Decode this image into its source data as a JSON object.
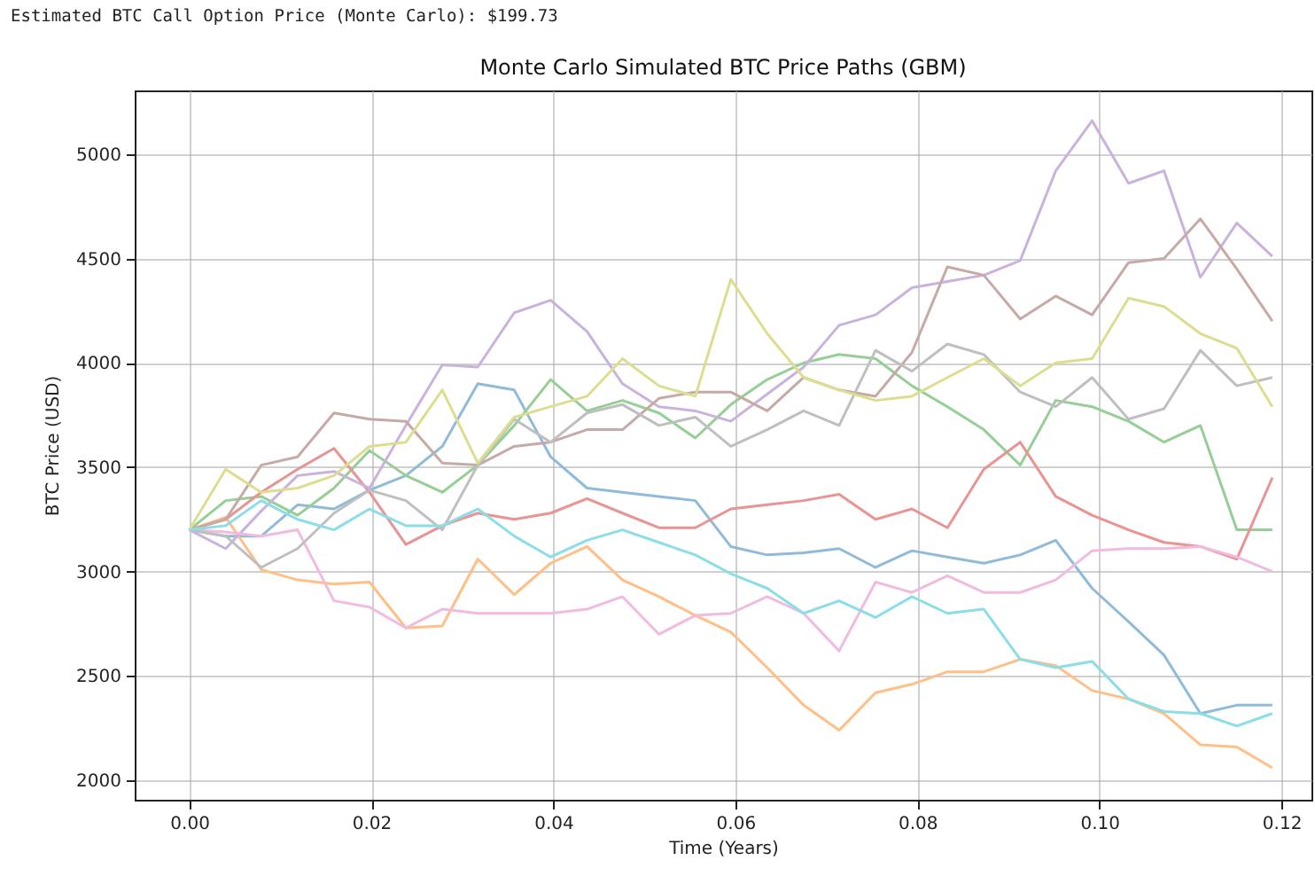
{
  "chart_data": {
    "type": "line",
    "title": "Monte Carlo Simulated BTC Price Paths (GBM)",
    "xlabel": "Time (Years)",
    "ylabel": "BTC Price (USD)",
    "annotations": [
      "Estimated BTC Call Option Price (Monte Carlo): $199.73"
    ],
    "x": [
      0,
      0.004,
      0.0079,
      0.0119,
      0.0159,
      0.0198,
      0.0238,
      0.0278,
      0.0317,
      0.0357,
      0.0397,
      0.0437,
      0.0476,
      0.0516,
      0.0556,
      0.0595,
      0.0635,
      0.0675,
      0.0714,
      0.0754,
      0.0794,
      0.0833,
      0.0873,
      0.0913,
      0.0952,
      0.0992,
      0.1032,
      0.1071,
      0.1111,
      0.1151,
      0.119
    ],
    "xlim": [
      -0.006,
      0.1233
    ],
    "xticks": [
      {
        "value": 0,
        "label": "0.00"
      },
      {
        "value": 0.02,
        "label": "0.02"
      },
      {
        "value": 0.04,
        "label": "0.04"
      },
      {
        "value": 0.06,
        "label": "0.06"
      },
      {
        "value": 0.08,
        "label": "0.08"
      },
      {
        "value": 0.1,
        "label": "0.10"
      },
      {
        "value": 0.12,
        "label": "0.12"
      }
    ],
    "ylim": [
      1907,
      5305
    ],
    "yticks": [
      2000,
      2500,
      3000,
      3500,
      4000,
      4500,
      5000
    ],
    "grid": true,
    "series": [
      {
        "color": "#8fbbd9",
        "values": [
          3200,
          3170,
          3170,
          3320,
          3300,
          3390,
          3460,
          3600,
          3900,
          3870,
          3550,
          3400,
          3380,
          3360,
          3340,
          3120,
          3080,
          3090,
          3110,
          3020,
          3100,
          3070,
          3040,
          3080,
          3150,
          2920,
          2760,
          2600,
          2320,
          2360,
          2360
        ]
      },
      {
        "color": "#ffbf86",
        "values": [
          3200,
          3260,
          3010,
          2960,
          2940,
          2950,
          2730,
          2740,
          3060,
          2890,
          3040,
          3120,
          2960,
          2880,
          2790,
          2710,
          2540,
          2360,
          2240,
          2420,
          2460,
          2520,
          2520,
          2580,
          2550,
          2430,
          2390,
          2320,
          2170,
          2160,
          2060
        ]
      },
      {
        "color": "#95cf95",
        "values": [
          3200,
          3340,
          3360,
          3270,
          3400,
          3580,
          3460,
          3380,
          3510,
          3700,
          3920,
          3770,
          3820,
          3760,
          3640,
          3800,
          3920,
          4000,
          4040,
          4020,
          3890,
          3790,
          3680,
          3510,
          3820,
          3790,
          3720,
          3620,
          3700,
          3200,
          3200
        ]
      },
      {
        "color": "#ea9393",
        "values": [
          3200,
          3250,
          3380,
          3490,
          3590,
          3380,
          3130,
          3220,
          3280,
          3250,
          3280,
          3350,
          3280,
          3210,
          3210,
          3300,
          3320,
          3340,
          3370,
          3250,
          3300,
          3210,
          3490,
          3620,
          3360,
          3270,
          3200,
          3140,
          3120,
          3060,
          3450
        ]
      },
      {
        "color": "#c9b3de",
        "values": [
          3200,
          3110,
          3290,
          3460,
          3480,
          3400,
          3700,
          3990,
          3980,
          4240,
          4300,
          4150,
          3900,
          3790,
          3770,
          3720,
          3850,
          3980,
          4180,
          4230,
          4360,
          4390,
          4420,
          4490,
          4920,
          5160,
          4860,
          4920,
          4410,
          4670,
          4510
        ]
      },
      {
        "color": "#c5aaa5",
        "values": [
          3200,
          3250,
          3510,
          3550,
          3760,
          3730,
          3720,
          3520,
          3510,
          3600,
          3620,
          3680,
          3680,
          3830,
          3860,
          3860,
          3770,
          3930,
          3870,
          3840,
          4050,
          4460,
          4420,
          4210,
          4320,
          4230,
          4480,
          4500,
          4690,
          4450,
          4200
        ]
      },
      {
        "color": "#f1bbe0",
        "values": [
          3200,
          3190,
          3170,
          3200,
          2860,
          2830,
          2730,
          2820,
          2800,
          2800,
          2800,
          2820,
          2880,
          2700,
          2790,
          2800,
          2880,
          2800,
          2620,
          2950,
          2900,
          2980,
          2900,
          2900,
          2960,
          3100,
          3110,
          3110,
          3120,
          3070,
          3000
        ]
      },
      {
        "color": "#bfbfbf",
        "values": [
          3200,
          3170,
          3020,
          3110,
          3280,
          3390,
          3340,
          3200,
          3510,
          3730,
          3620,
          3760,
          3800,
          3700,
          3740,
          3600,
          3680,
          3770,
          3700,
          4060,
          3960,
          4090,
          4040,
          3860,
          3790,
          3930,
          3730,
          3780,
          4060,
          3890,
          3930
        ]
      },
      {
        "color": "#dddd90",
        "values": [
          3200,
          3490,
          3380,
          3400,
          3460,
          3600,
          3620,
          3870,
          3520,
          3740,
          3790,
          3840,
          4020,
          3890,
          3840,
          4400,
          4140,
          3930,
          3870,
          3820,
          3840,
          3930,
          4020,
          3890,
          4000,
          4020,
          4310,
          4270,
          4140,
          4070,
          3790
        ]
      },
      {
        "color": "#8bdee7",
        "values": [
          3200,
          3220,
          3340,
          3250,
          3200,
          3300,
          3220,
          3220,
          3300,
          3170,
          3070,
          3150,
          3200,
          3140,
          3080,
          2990,
          2920,
          2800,
          2860,
          2780,
          2880,
          2800,
          2820,
          2580,
          2540,
          2570,
          2390,
          2330,
          2320,
          2260,
          2320
        ]
      }
    ]
  }
}
